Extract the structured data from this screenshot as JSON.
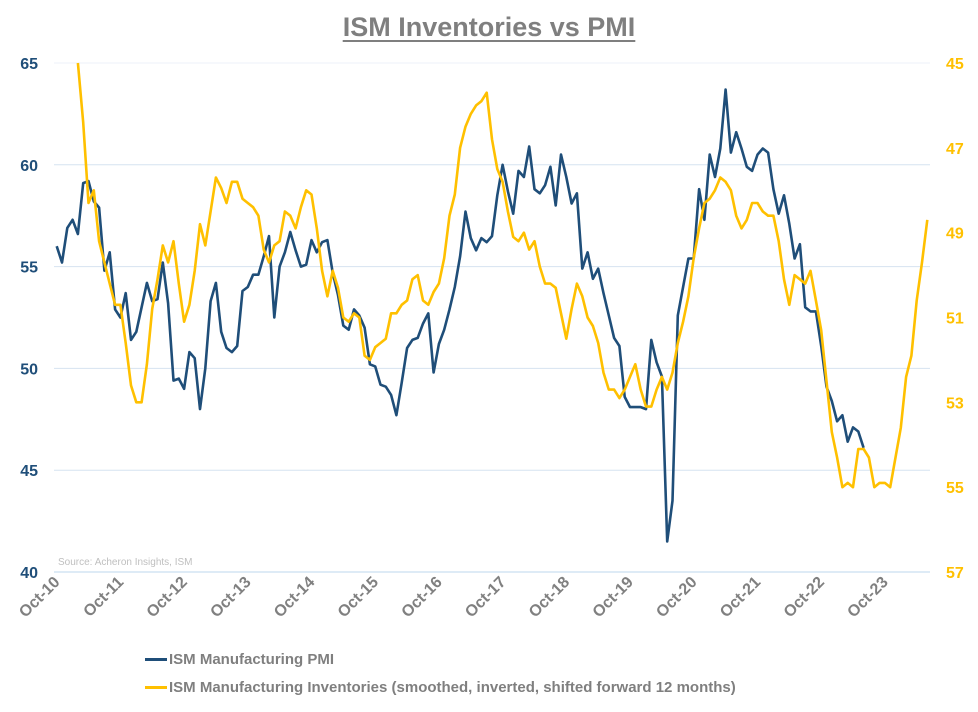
{
  "chart_data": {
    "type": "line",
    "title": "ISM Inventories vs PMI",
    "source": "Source: Acheron Insights, ISM",
    "x_start": "Oct-10",
    "x_frequency": "monthly",
    "x_tick_labels": [
      "Oct-10",
      "Oct-11",
      "Oct-12",
      "Oct-13",
      "Oct-14",
      "Oct-15",
      "Oct-16",
      "Oct-17",
      "Oct-18",
      "Oct-19",
      "Oct-20",
      "Oct-21",
      "Oct-22",
      "Oct-23"
    ],
    "x_count": 165,
    "y_left": {
      "ylim": [
        40,
        65
      ],
      "ticks": [
        "40",
        "45",
        "50",
        "55",
        "60",
        "65"
      ],
      "color": "#1f4e79"
    },
    "y_right": {
      "ylim": [
        45,
        57
      ],
      "inverted": true,
      "ticks": [
        "45",
        "47",
        "49",
        "51",
        "53",
        "55",
        "57"
      ],
      "color": "#ffc000"
    },
    "grid": true,
    "legend_position": "bottom",
    "series": [
      {
        "name": "ISM Manufacturing PMI",
        "axis": "left",
        "color": "#1f4e79",
        "values": [
          56.0,
          55.2,
          56.9,
          57.3,
          56.6,
          59.1,
          59.2,
          58.2,
          57.9,
          54.8,
          55.7,
          52.9,
          52.5,
          53.7,
          51.4,
          51.8,
          53.0,
          54.2,
          53.3,
          53.4,
          55.2,
          53.2,
          49.4,
          49.5,
          49.0,
          50.8,
          50.5,
          48.0,
          50.0,
          53.3,
          54.2,
          51.8,
          51.0,
          50.8,
          51.1,
          53.8,
          54.0,
          54.6,
          54.6,
          55.5,
          56.5,
          52.5,
          55.0,
          55.7,
          56.7,
          55.8,
          55.0,
          55.1,
          56.3,
          55.7,
          56.2,
          56.3,
          54.7,
          53.6,
          52.1,
          51.9,
          52.9,
          52.6,
          52.0,
          50.2,
          50.1,
          49.2,
          49.1,
          48.7,
          47.7,
          49.3,
          51.0,
          51.4,
          51.5,
          52.2,
          52.7,
          49.8,
          51.2,
          51.9,
          52.9,
          54.0,
          55.5,
          57.7,
          56.4,
          55.8,
          56.4,
          56.2,
          56.5,
          58.5,
          60.0,
          58.7,
          57.6,
          59.7,
          59.4,
          60.9,
          58.8,
          58.6,
          59.0,
          59.9,
          58.0,
          60.5,
          59.4,
          58.1,
          58.6,
          54.9,
          55.7,
          54.4,
          54.9,
          53.7,
          52.6,
          51.5,
          51.1,
          48.6,
          48.1,
          48.1,
          48.1,
          48.0,
          51.4,
          50.3,
          49.6,
          41.5,
          43.5,
          52.6,
          54.0,
          55.4,
          55.4,
          58.8,
          57.3,
          60.5,
          59.4,
          60.8,
          63.7,
          60.6,
          61.6,
          60.8,
          59.9,
          59.7,
          60.5,
          60.8,
          60.6,
          58.8,
          57.6,
          58.5,
          57.1,
          55.4,
          56.1,
          53.0,
          52.8,
          52.8,
          51.1,
          49.1,
          48.4,
          47.4,
          47.7,
          46.4,
          47.1,
          46.9,
          46.1
        ]
      },
      {
        "name": "ISM Manufacturing Inventories (smoothed, inverted, shifted forward 12 months)",
        "axis": "right",
        "color": "#ffc000",
        "values": [
          null,
          null,
          null,
          null,
          45.0,
          46.4,
          48.3,
          48.0,
          49.2,
          49.7,
          50.2,
          50.7,
          50.7,
          51.6,
          52.6,
          53.0,
          53.0,
          52.1,
          50.8,
          50.1,
          49.3,
          49.7,
          49.2,
          50.2,
          51.1,
          50.7,
          49.9,
          48.8,
          49.3,
          48.5,
          47.7,
          47.95,
          48.3,
          47.8,
          47.8,
          48.2,
          48.3,
          48.4,
          48.6,
          49.4,
          49.7,
          49.3,
          49.2,
          48.5,
          48.6,
          48.9,
          48.4,
          48.0,
          48.1,
          48.9,
          49.9,
          50.5,
          49.9,
          50.3,
          51.0,
          51.1,
          50.9,
          51.0,
          51.9,
          52.0,
          51.7,
          51.6,
          51.5,
          50.9,
          50.9,
          50.7,
          50.6,
          50.1,
          50.0,
          50.6,
          50.7,
          50.4,
          50.2,
          49.6,
          48.6,
          48.1,
          47.0,
          46.5,
          46.2,
          46.0,
          45.9,
          45.7,
          46.8,
          47.5,
          47.8,
          48.5,
          49.1,
          49.2,
          49.0,
          49.4,
          49.2,
          49.8,
          50.2,
          50.2,
          50.3,
          50.9,
          51.5,
          50.8,
          50.2,
          50.5,
          51.0,
          51.2,
          51.6,
          52.3,
          52.7,
          52.7,
          52.9,
          52.7,
          52.4,
          52.1,
          52.7,
          53.1,
          53.1,
          52.7,
          52.4,
          52.7,
          52.3,
          51.6,
          51.1,
          50.5,
          49.6,
          48.9,
          48.3,
          48.2,
          48.0,
          47.7,
          47.8,
          48.0,
          48.6,
          48.9,
          48.7,
          48.3,
          48.3,
          48.5,
          48.6,
          48.6,
          49.2,
          50.1,
          50.7,
          50.0,
          50.1,
          50.2,
          49.9,
          50.6,
          51.3,
          52.5,
          53.7,
          54.3,
          55.0,
          54.9,
          55.0,
          54.1,
          54.1,
          54.3,
          55.0,
          54.9,
          54.9,
          55.0,
          54.3,
          53.6,
          52.4,
          51.9,
          50.6,
          49.7,
          48.7
        ]
      }
    ]
  }
}
